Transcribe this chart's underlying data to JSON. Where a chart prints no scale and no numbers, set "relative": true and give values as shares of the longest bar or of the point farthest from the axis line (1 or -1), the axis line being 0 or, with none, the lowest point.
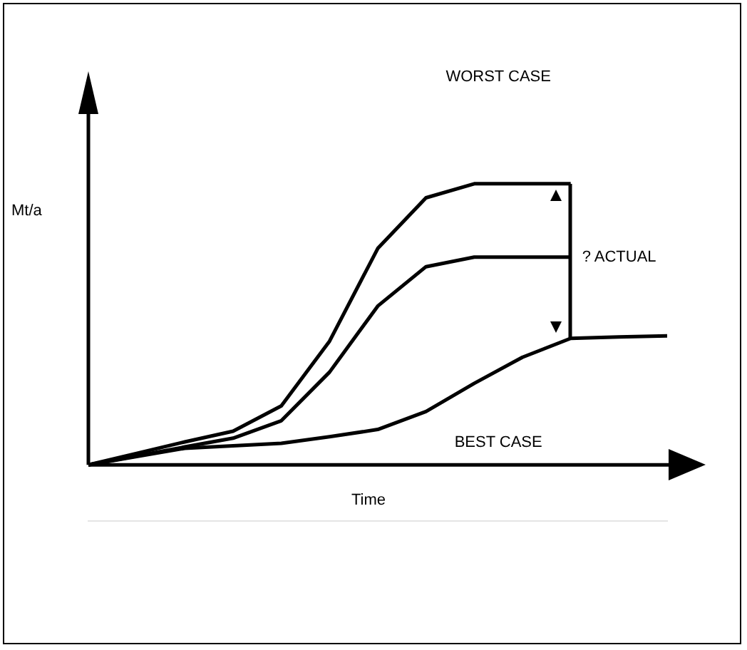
{
  "chart_data": {
    "type": "line",
    "relative": true,
    "xlabel": "Time",
    "ylabel": "Mt/a",
    "legend": false,
    "marker": "none",
    "line_style": "solid",
    "categories": [
      null,
      null,
      null,
      null,
      null,
      null,
      null,
      null,
      null,
      null,
      null,
      null,
      null
    ],
    "series": [
      {
        "values": [
          0,
          0.041,
          0.082,
          0.12,
          0.21,
          0.44,
          0.77,
          0.95,
          1,
          1,
          1,
          null,
          null
        ],
        "color": "#000000"
      },
      {
        "values": [
          0,
          0.032,
          0.064,
          0.095,
          0.157,
          0.33,
          0.565,
          0.705,
          0.739,
          0.739,
          0.739,
          null,
          null
        ],
        "color": "#000000"
      },
      {
        "values": [
          0,
          0.03,
          0.059,
          0.068,
          0.077,
          0.1,
          0.126,
          0.19,
          0.29,
          0.383,
          0.45,
          0.455,
          0.459
        ],
        "color": "#000000"
      }
    ],
    "annotations": [
      "WORST CASE",
      "? ACTUAL",
      "BEST CASE"
    ]
  }
}
